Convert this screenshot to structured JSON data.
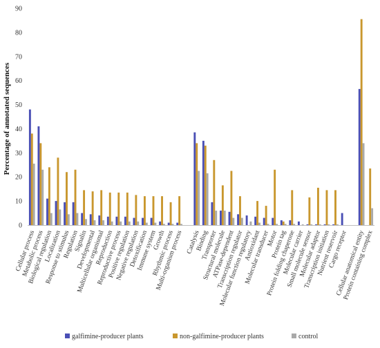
{
  "chart_data": {
    "type": "bar",
    "ylabel": "Percentage of annotated sequences",
    "ylim": [
      0,
      90
    ],
    "yticks": [
      0,
      10,
      20,
      30,
      40,
      50,
      60,
      70,
      80,
      90
    ],
    "grid": false,
    "legend_position": "bottom",
    "categories": [
      "Cellular process",
      "Metabolic process",
      "Biological regulation",
      "Localization",
      "Response to stimulus",
      "Regulation",
      "Signalin",
      "Developmental",
      "Multicellular organismal",
      "Reproduction",
      "Reproductive process",
      "Positive regulation",
      "Negative regulation",
      "Detoxification",
      "Immune system",
      "Growth",
      "Rhythmic process",
      "Multi-organism process",
      "",
      "Catalysis",
      "Binding",
      "Transporter",
      "Structural molecule",
      "ATPase-dependent",
      "Transcription regulator",
      "Molecular function regulatory",
      "Antioxidant",
      "Molecular transducer",
      "Motor",
      "Protein tag",
      "Protein folding chaperone",
      "Molecular carrier",
      "Small molecule sensor",
      "Molecular adaptor",
      "Transcription initiation",
      "Nutrient reservoir",
      "Cargo receptor",
      "",
      "Cellular anatomical entity",
      "Protein containing complex"
    ],
    "series": [
      {
        "name": "galfimine-producer plants",
        "color": "#4a4fb5",
        "values": [
          48,
          41,
          11,
          10,
          9.5,
          9.5,
          5,
          4.5,
          4,
          3.5,
          3.5,
          3.5,
          3,
          3,
          3,
          1.5,
          1,
          1,
          null,
          38.5,
          35,
          9.5,
          6,
          5.5,
          4.5,
          4,
          3.5,
          3,
          3,
          2,
          2,
          1.5,
          0.3,
          0.3,
          0.3,
          0.3,
          5,
          null,
          56.5,
          0
        ]
      },
      {
        "name": "non-galfimine-producer plants",
        "color": "#c9972e",
        "values": [
          38,
          34,
          24,
          28,
          22,
          23,
          14.5,
          14,
          14.5,
          13.5,
          13.5,
          13.5,
          12.5,
          12,
          12,
          12,
          9.5,
          12,
          null,
          34,
          33,
          27,
          16.5,
          22.5,
          12,
          0,
          10,
          8,
          23,
          1.5,
          14.5,
          0,
          11.5,
          15.5,
          14.5,
          14.5,
          0,
          null,
          85.5,
          23.5
        ]
      },
      {
        "name": "control",
        "color": "#a9a9a9",
        "values": [
          25.5,
          23,
          5,
          6.5,
          4.5,
          5,
          2.5,
          2,
          2,
          1.5,
          1.5,
          1.5,
          1.5,
          1,
          1,
          0.5,
          0.5,
          0.5,
          null,
          22.5,
          21.5,
          6,
          6,
          3,
          3,
          1.5,
          1,
          0.5,
          0.5,
          0.5,
          0.5,
          0.3,
          0.3,
          0.3,
          0.3,
          0.3,
          0,
          null,
          34,
          7
        ]
      }
    ]
  }
}
